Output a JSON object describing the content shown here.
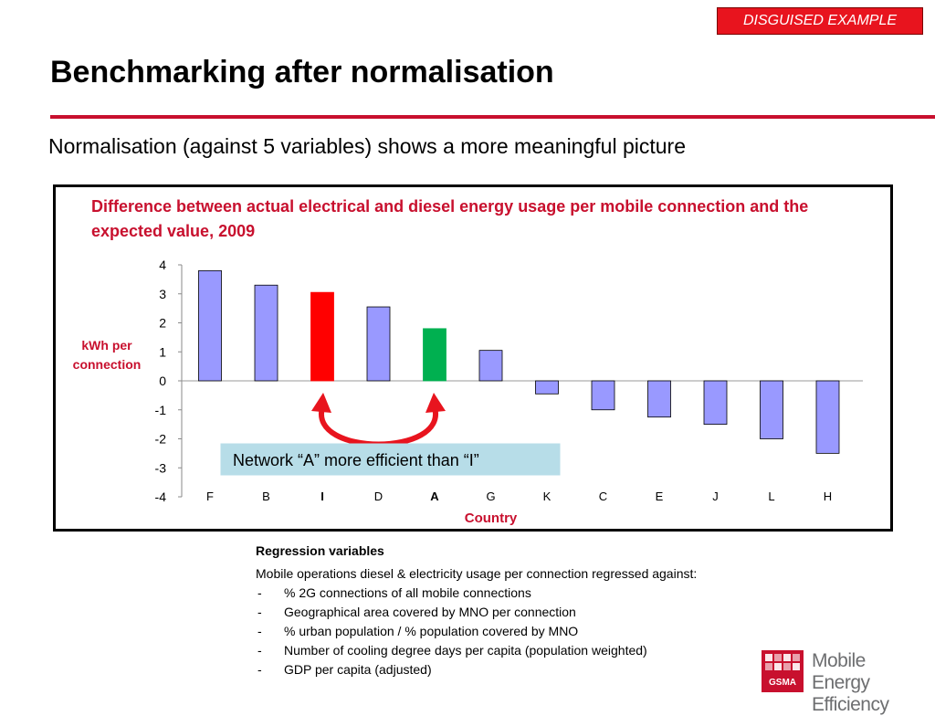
{
  "slide": {
    "tag": "DISGUISED EXAMPLE",
    "title": "Benchmarking after normalisation",
    "subtitle": "Normalisation (against 5 variables) shows a more meaningful picture",
    "accent_color": "#c8102e"
  },
  "chart_data": {
    "type": "bar",
    "title": "Difference between actual electrical and diesel energy usage per mobile connection and the expected value, 2009",
    "xlabel": "Country",
    "ylabel": "kWh per connection",
    "ylim": [
      -4,
      4
    ],
    "yticks": [
      4,
      3,
      2,
      1,
      0,
      -1,
      -2,
      -3,
      -4
    ],
    "categories": [
      "F",
      "B",
      "I",
      "D",
      "A",
      "G",
      "K",
      "C",
      "E",
      "J",
      "L",
      "H"
    ],
    "bold_categories": [
      "I",
      "A"
    ],
    "values": [
      3.8,
      3.3,
      3.05,
      2.55,
      1.8,
      1.05,
      -0.45,
      -1.0,
      -1.25,
      -1.5,
      -2.0,
      -2.5
    ],
    "bar_colors": [
      "#9999ff",
      "#9999ff",
      "#ff0000",
      "#9999ff",
      "#00b050",
      "#9999ff",
      "#9999ff",
      "#9999ff",
      "#9999ff",
      "#9999ff",
      "#9999ff",
      "#9999ff"
    ],
    "grid": false,
    "annotation": "Network “A” more efficient than “I”"
  },
  "notes": {
    "heading": "Regression variables",
    "lead": "Mobile operations diesel & electricity usage per connection regressed against:",
    "items": [
      "% 2G connections of all mobile connections",
      "Geographical area covered by MNO per connection",
      "% urban population / % population covered by MNO",
      "Number of cooling degree days per capita (population weighted)",
      "GDP per capita (adjusted)"
    ]
  },
  "logo": {
    "name": "gsma-mobile-energy-efficiency-logo",
    "mark_text": "GSMA",
    "line1": "Mobile Energy",
    "line2": "Efficiency"
  }
}
